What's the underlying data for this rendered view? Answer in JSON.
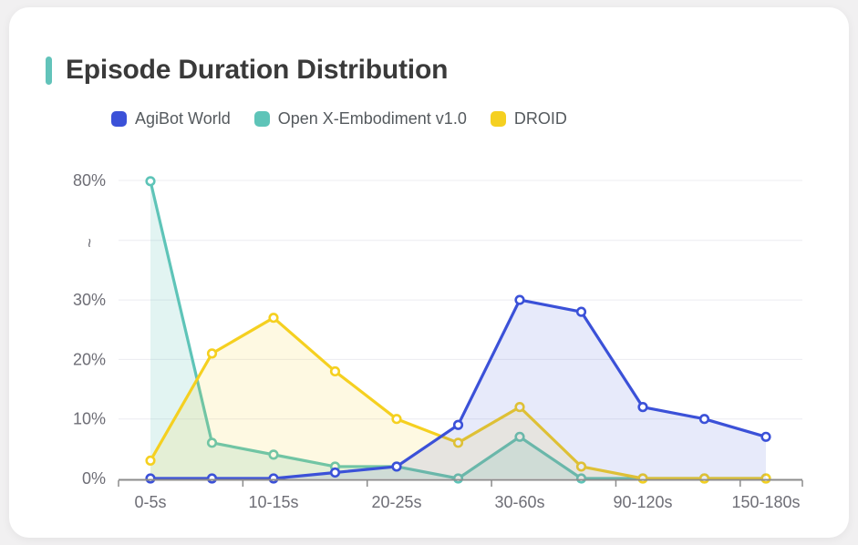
{
  "chart_data": {
    "type": "line",
    "title": "Episode Duration Distribution",
    "accent_color": "#62c3ba",
    "categories": [
      "0-5s",
      "",
      "10-15s",
      "",
      "20-25s",
      "",
      "30-60s",
      "",
      "90-120s",
      "",
      "150-180s"
    ],
    "x_tick_labels_visible": [
      "0-5s",
      "10-15s",
      "20-25s",
      "30-60s",
      "90-120s",
      "150-180s"
    ],
    "series": [
      {
        "name": "AgiBot World",
        "color": "#3b51d8",
        "fill_opacity": 0.12,
        "values": [
          0,
          0,
          0,
          1,
          2,
          9,
          30,
          28,
          12,
          10,
          7
        ]
      },
      {
        "name": "Open X-Embodiment v1.0",
        "color": "#5ec4b8",
        "fill_opacity": 0.18,
        "values": [
          79.5,
          6,
          4,
          2,
          2,
          0,
          7,
          0,
          0,
          0,
          0
        ]
      },
      {
        "name": "DROID",
        "color": "#f5d020",
        "fill_opacity": 0.13,
        "values": [
          3,
          21,
          27,
          18,
          10,
          6,
          12,
          2,
          0,
          0,
          0
        ]
      }
    ],
    "draw_order": [
      1,
      2,
      0
    ],
    "y_axis": {
      "unit": "%",
      "ticks": [
        {
          "label": "0%",
          "value": 0
        },
        {
          "label": "10%",
          "value": 10
        },
        {
          "label": "20%",
          "value": 20
        },
        {
          "label": "30%",
          "value": 30
        },
        {
          "label": "~",
          "value": "break"
        },
        {
          "label": "80%",
          "value": 80
        }
      ],
      "break": {
        "between": [
          30,
          80
        ],
        "symbol": "~"
      }
    },
    "legend_position": "top",
    "grid": true,
    "area_fill": true,
    "markers": true
  },
  "colors": {
    "grid_line": "#ececf1",
    "axis_line": "#8c8c8c",
    "tick_label": "#6e6e76"
  }
}
